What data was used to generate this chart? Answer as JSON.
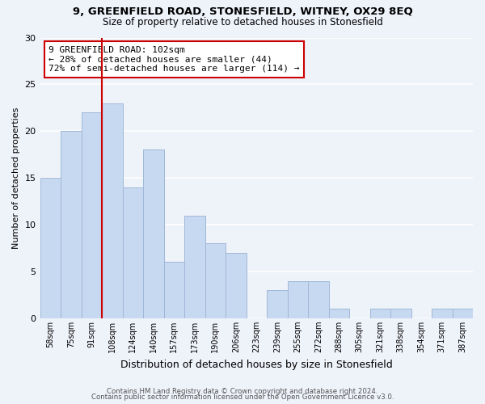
{
  "title1": "9, GREENFIELD ROAD, STONESFIELD, WITNEY, OX29 8EQ",
  "title2": "Size of property relative to detached houses in Stonesfield",
  "xlabel": "Distribution of detached houses by size in Stonesfield",
  "ylabel": "Number of detached properties",
  "categories": [
    "58sqm",
    "75sqm",
    "91sqm",
    "108sqm",
    "124sqm",
    "140sqm",
    "157sqm",
    "173sqm",
    "190sqm",
    "206sqm",
    "223sqm",
    "239sqm",
    "255sqm",
    "272sqm",
    "288sqm",
    "305sqm",
    "321sqm",
    "338sqm",
    "354sqm",
    "371sqm",
    "387sqm"
  ],
  "values": [
    15,
    20,
    22,
    23,
    14,
    18,
    6,
    11,
    8,
    7,
    0,
    3,
    4,
    4,
    1,
    0,
    1,
    1,
    0,
    1,
    1
  ],
  "bar_color": "#c6d9f0",
  "bar_edge_color": "#a0b8d8",
  "marker_color": "#cc0000",
  "annotation_text": "9 GREENFIELD ROAD: 102sqm\n← 28% of detached houses are smaller (44)\n72% of semi-detached houses are larger (114) →",
  "annotation_box_color": "white",
  "annotation_box_edge": "#cc0000",
  "ylim": [
    0,
    30
  ],
  "yticks": [
    0,
    5,
    10,
    15,
    20,
    25,
    30
  ],
  "footer1": "Contains HM Land Registry data © Crown copyright and database right 2024.",
  "footer2": "Contains public sector information licensed under the Open Government Licence v3.0.",
  "bg_color": "#eef2f9"
}
